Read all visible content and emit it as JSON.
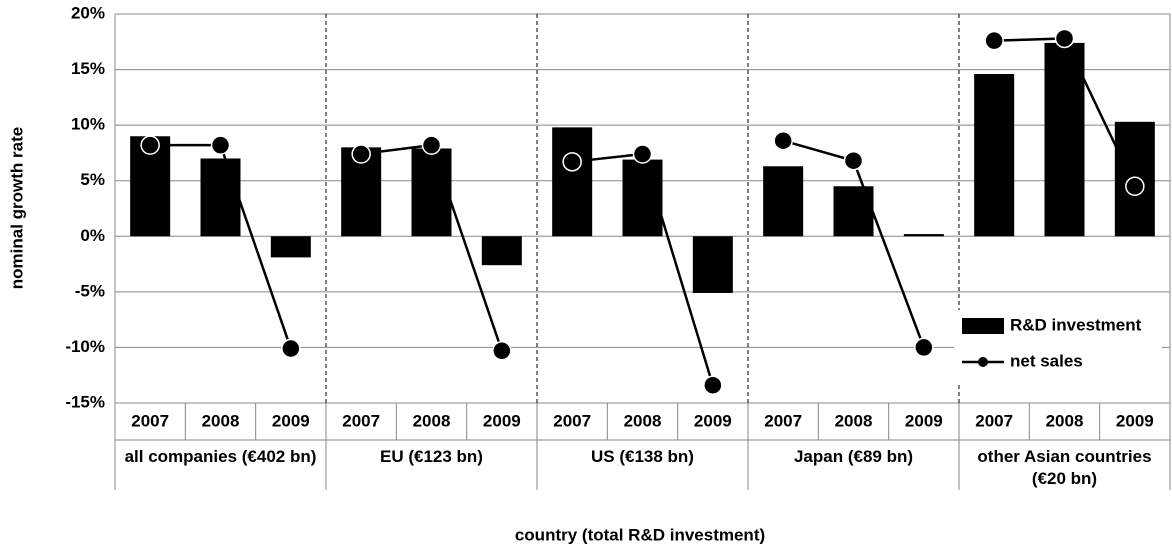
{
  "chart_data": {
    "type": "bar-line",
    "y_label": "nominal growth rate",
    "x_label": "country (total R&D investment)",
    "categories": [
      "2007",
      "2008",
      "2009",
      "2007",
      "2008",
      "2009",
      "2007",
      "2008",
      "2009",
      "2007",
      "2008",
      "2009",
      "2007",
      "2008",
      "2009"
    ],
    "groups": [
      "all companies (€402 bn)",
      "EU (€123 bn)",
      "US (€138 bn)",
      "Japan (€89 bn)",
      "other Asian countries (€20 bn)"
    ],
    "series": [
      {
        "name": "R&D investment",
        "kind": "bar",
        "color": "#000000",
        "values": [
          9.0,
          7.0,
          -1.9,
          8.0,
          7.9,
          -2.6,
          9.8,
          6.9,
          -5.1,
          6.3,
          4.5,
          0.2,
          14.6,
          17.4,
          10.3
        ]
      },
      {
        "name": "net sales",
        "kind": "line",
        "color": "#000000",
        "values": [
          8.2,
          8.2,
          -10.1,
          7.4,
          8.2,
          -10.3,
          6.7,
          7.4,
          -13.4,
          8.6,
          6.8,
          -10.0,
          17.6,
          17.8,
          4.5
        ]
      }
    ],
    "ylim": [
      -15,
      20
    ],
    "yticks": [
      {
        "value": -15,
        "label": "-15%"
      },
      {
        "value": -10,
        "label": "-10%"
      },
      {
        "value": -5,
        "label": "-5%"
      },
      {
        "value": 0,
        "label": "0%"
      },
      {
        "value": 5,
        "label": "5%"
      },
      {
        "value": 10,
        "label": "10%"
      },
      {
        "value": 15,
        "label": "15%"
      },
      {
        "value": 20,
        "label": "20%"
      }
    ],
    "grid": true,
    "legend": "lower right"
  }
}
